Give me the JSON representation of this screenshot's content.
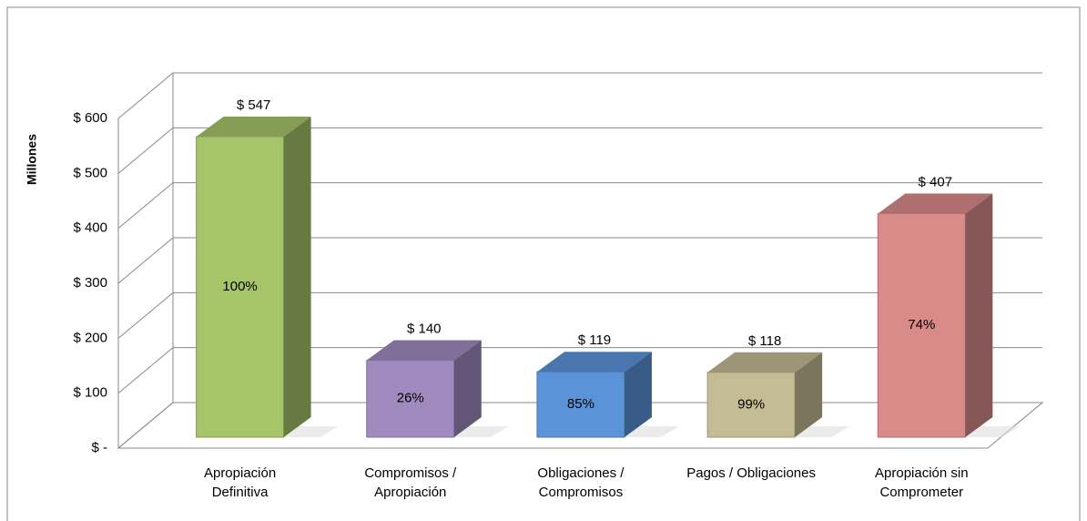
{
  "chart_data": {
    "type": "bar3d",
    "y_label": "Millones",
    "categories": [
      "Apropiación\nDefinitiva",
      "Compromisos /\nApropiación",
      "Obligaciones /\nCompromisos",
      "Pagos / Obligaciones",
      "Apropiación sin\nComprometer"
    ],
    "values": [
      547,
      140,
      119,
      118,
      407
    ],
    "value_labels": [
      "$ 547",
      "$ 140",
      "$ 119",
      "$ 118",
      "$ 407"
    ],
    "percent_labels": [
      "100%",
      "26%",
      "85%",
      "99%",
      "74%"
    ],
    "colors": [
      "#a6c46a",
      "#a08bbf",
      "#5b93d9",
      "#c4bc94",
      "#d98b8a"
    ],
    "ylim": [
      0,
      600
    ],
    "yticks": [
      {
        "value": 0,
        "label": "$ -"
      },
      {
        "value": 100,
        "label": "$ 100"
      },
      {
        "value": 200,
        "label": "$ 200"
      },
      {
        "value": 300,
        "label": "$ 300"
      },
      {
        "value": 400,
        "label": "$ 400"
      },
      {
        "value": 500,
        "label": "$ 500"
      },
      {
        "value": 600,
        "label": "$ 600"
      }
    ],
    "grid": true
  }
}
